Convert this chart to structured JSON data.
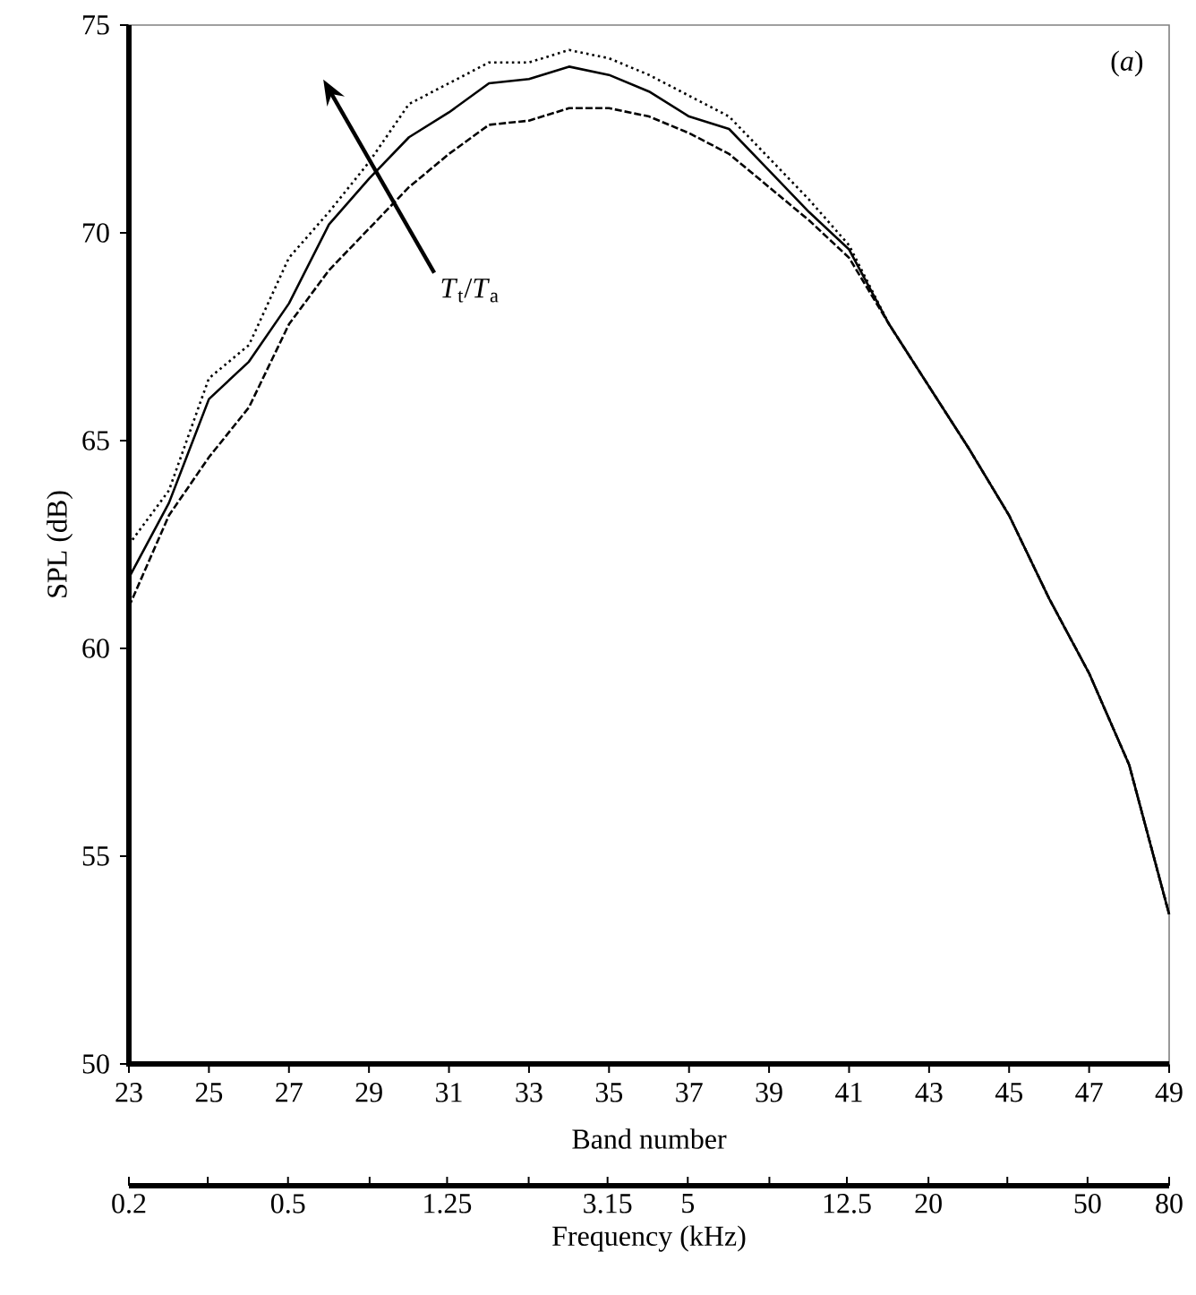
{
  "chart_data": {
    "type": "line",
    "xlabel": "Band number",
    "ylabel": "SPL (dB)",
    "x2label": "Frequency (kHz)",
    "x": [
      23,
      24,
      25,
      26,
      27,
      28,
      29,
      30,
      31,
      32,
      33,
      34,
      35,
      36,
      37,
      38,
      39,
      40,
      41,
      42,
      43,
      44,
      45,
      46,
      47,
      48,
      49
    ],
    "series": [
      {
        "color": "#000000",
        "line_style": "dashed",
        "values": [
          61.0,
          63.2,
          64.6,
          65.8,
          67.8,
          69.1,
          70.1,
          71.1,
          71.9,
          72.6,
          72.7,
          73.0,
          73.0,
          72.8,
          72.4,
          71.9,
          71.1,
          70.3,
          69.4,
          67.8,
          66.3,
          64.8,
          63.2,
          61.2,
          59.4,
          57.2,
          53.6
        ]
      },
      {
        "color": "#000000",
        "line_style": "solid",
        "values": [
          61.7,
          63.5,
          66.0,
          66.9,
          68.3,
          70.2,
          71.3,
          72.3,
          72.9,
          73.6,
          73.7,
          74.0,
          73.8,
          73.4,
          72.8,
          72.5,
          71.5,
          70.5,
          69.6,
          67.8,
          66.3,
          64.8,
          63.2,
          61.2,
          59.4,
          57.2,
          53.6
        ]
      },
      {
        "color": "#000000",
        "line_style": "dotted",
        "values": [
          62.5,
          63.8,
          66.5,
          67.3,
          69.4,
          70.5,
          71.7,
          73.1,
          73.6,
          74.1,
          74.1,
          74.4,
          74.2,
          73.8,
          73.3,
          72.8,
          71.8,
          70.8,
          69.7,
          67.8,
          66.3,
          64.8,
          63.2,
          61.2,
          59.4,
          57.2,
          53.6
        ]
      }
    ],
    "xlim": [
      23,
      49
    ],
    "xticks": [
      23,
      25,
      27,
      29,
      31,
      33,
      35,
      37,
      39,
      41,
      43,
      45,
      47,
      49
    ],
    "ylim": [
      50,
      75
    ],
    "yticks": [
      50,
      55,
      60,
      65,
      70,
      75
    ],
    "log": "x2",
    "x2lim": [
      0.2,
      80
    ],
    "x2ticks": [
      0.2,
      {
        "value": 0.315,
        "label": null
      },
      0.5,
      {
        "value": 0.8,
        "label": null
      },
      1.25,
      {
        "value": 2,
        "label": null
      },
      3.15,
      5,
      {
        "value": 8,
        "label": null
      },
      12.5,
      20,
      {
        "value": 31.5,
        "label": null
      },
      50,
      80
    ],
    "annotations": [
      "*T*$_{t}$/*T*$_{a}$",
      "(*a*)"
    ],
    "grid": false
  }
}
